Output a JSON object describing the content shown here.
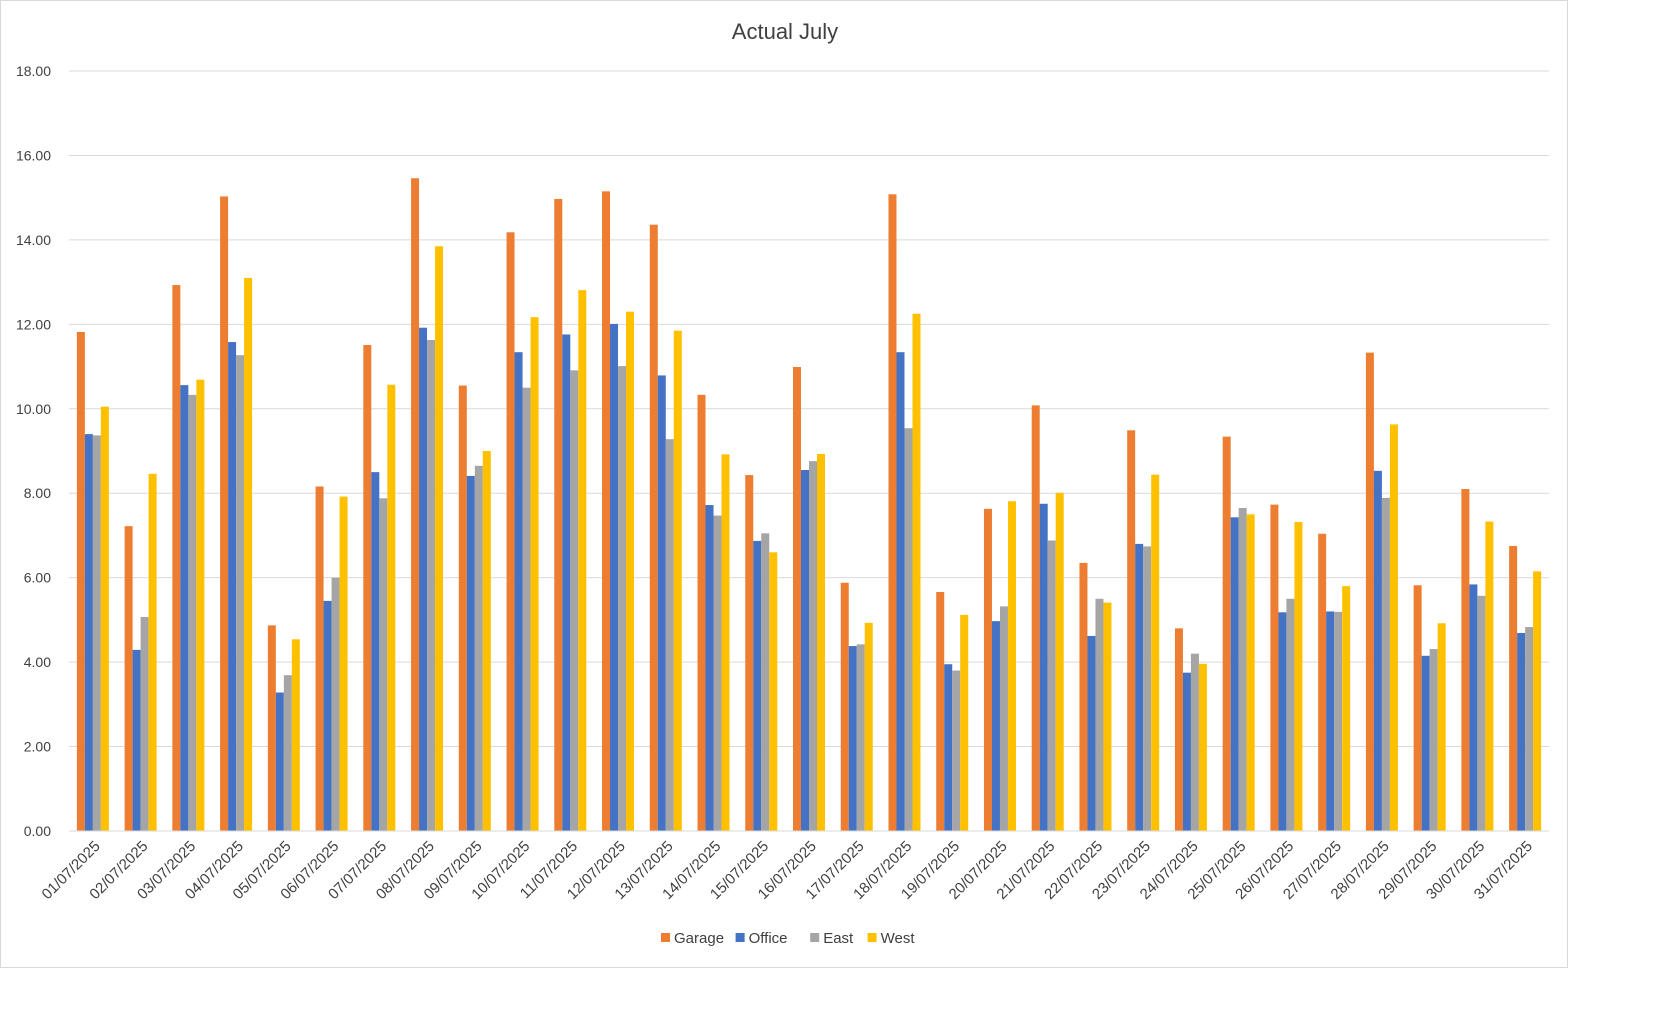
{
  "chart_data": {
    "type": "bar",
    "title": "Actual July",
    "xlabel": "",
    "ylabel": "",
    "ylim": [
      0,
      18
    ],
    "yticks": [
      "0.00",
      "2.00",
      "4.00",
      "6.00",
      "8.00",
      "10.00",
      "12.00",
      "14.00",
      "16.00",
      "18.00"
    ],
    "grid": true,
    "legend_position": "bottom",
    "categories": [
      "01/07/2025",
      "02/07/2025",
      "03/07/2025",
      "04/07/2025",
      "05/07/2025",
      "06/07/2025",
      "07/07/2025",
      "08/07/2025",
      "09/07/2025",
      "10/07/2025",
      "11/07/2025",
      "12/07/2025",
      "13/07/2025",
      "14/07/2025",
      "15/07/2025",
      "16/07/2025",
      "17/07/2025",
      "18/07/2025",
      "19/07/2025",
      "20/07/2025",
      "21/07/2025",
      "22/07/2025",
      "23/07/2025",
      "24/07/2025",
      "25/07/2025",
      "26/07/2025",
      "27/07/2025",
      "28/07/2025",
      "29/07/2025",
      "30/07/2025",
      "31/07/2025"
    ],
    "series": [
      {
        "name": "Garage",
        "color": "#ED7D31",
        "values": [
          11.82,
          7.22,
          12.93,
          15.03,
          4.87,
          8.16,
          11.51,
          15.46,
          10.55,
          14.18,
          14.97,
          15.15,
          14.36,
          10.33,
          8.43,
          10.99,
          5.88,
          15.08,
          5.66,
          7.63,
          10.08,
          6.35,
          9.49,
          4.8,
          9.34,
          7.73,
          7.04,
          11.33,
          5.82,
          8.1,
          6.75
        ]
      },
      {
        "name": "Office",
        "color": "#4472C4",
        "values": [
          9.4,
          4.29,
          10.56,
          11.58,
          3.28,
          5.45,
          8.5,
          11.92,
          8.41,
          11.34,
          11.76,
          12.01,
          10.79,
          7.72,
          6.87,
          8.55,
          4.38,
          11.34,
          3.95,
          4.97,
          7.75,
          4.62,
          6.8,
          3.75,
          7.43,
          5.18,
          5.2,
          8.53,
          4.15,
          5.84,
          4.69
        ]
      },
      {
        "name": "East",
        "color": "#A5A5A5",
        "values": [
          9.37,
          5.07,
          10.33,
          11.27,
          3.69,
          6.0,
          7.88,
          11.63,
          8.65,
          10.5,
          10.91,
          11.01,
          9.28,
          7.47,
          7.05,
          8.76,
          4.42,
          9.54,
          3.8,
          5.32,
          6.88,
          5.5,
          6.74,
          4.2,
          7.65,
          5.5,
          5.19,
          7.89,
          4.31,
          5.57,
          4.83
        ]
      },
      {
        "name": "West",
        "color": "#FFC000",
        "values": [
          10.05,
          8.46,
          10.69,
          13.1,
          4.54,
          7.92,
          10.57,
          13.85,
          9.0,
          12.17,
          12.81,
          12.3,
          11.85,
          8.92,
          6.6,
          8.93,
          4.93,
          12.25,
          5.12,
          7.81,
          8.01,
          5.41,
          8.44,
          3.96,
          7.5,
          7.32,
          5.8,
          9.63,
          4.92,
          7.33,
          6.15
        ]
      }
    ]
  }
}
